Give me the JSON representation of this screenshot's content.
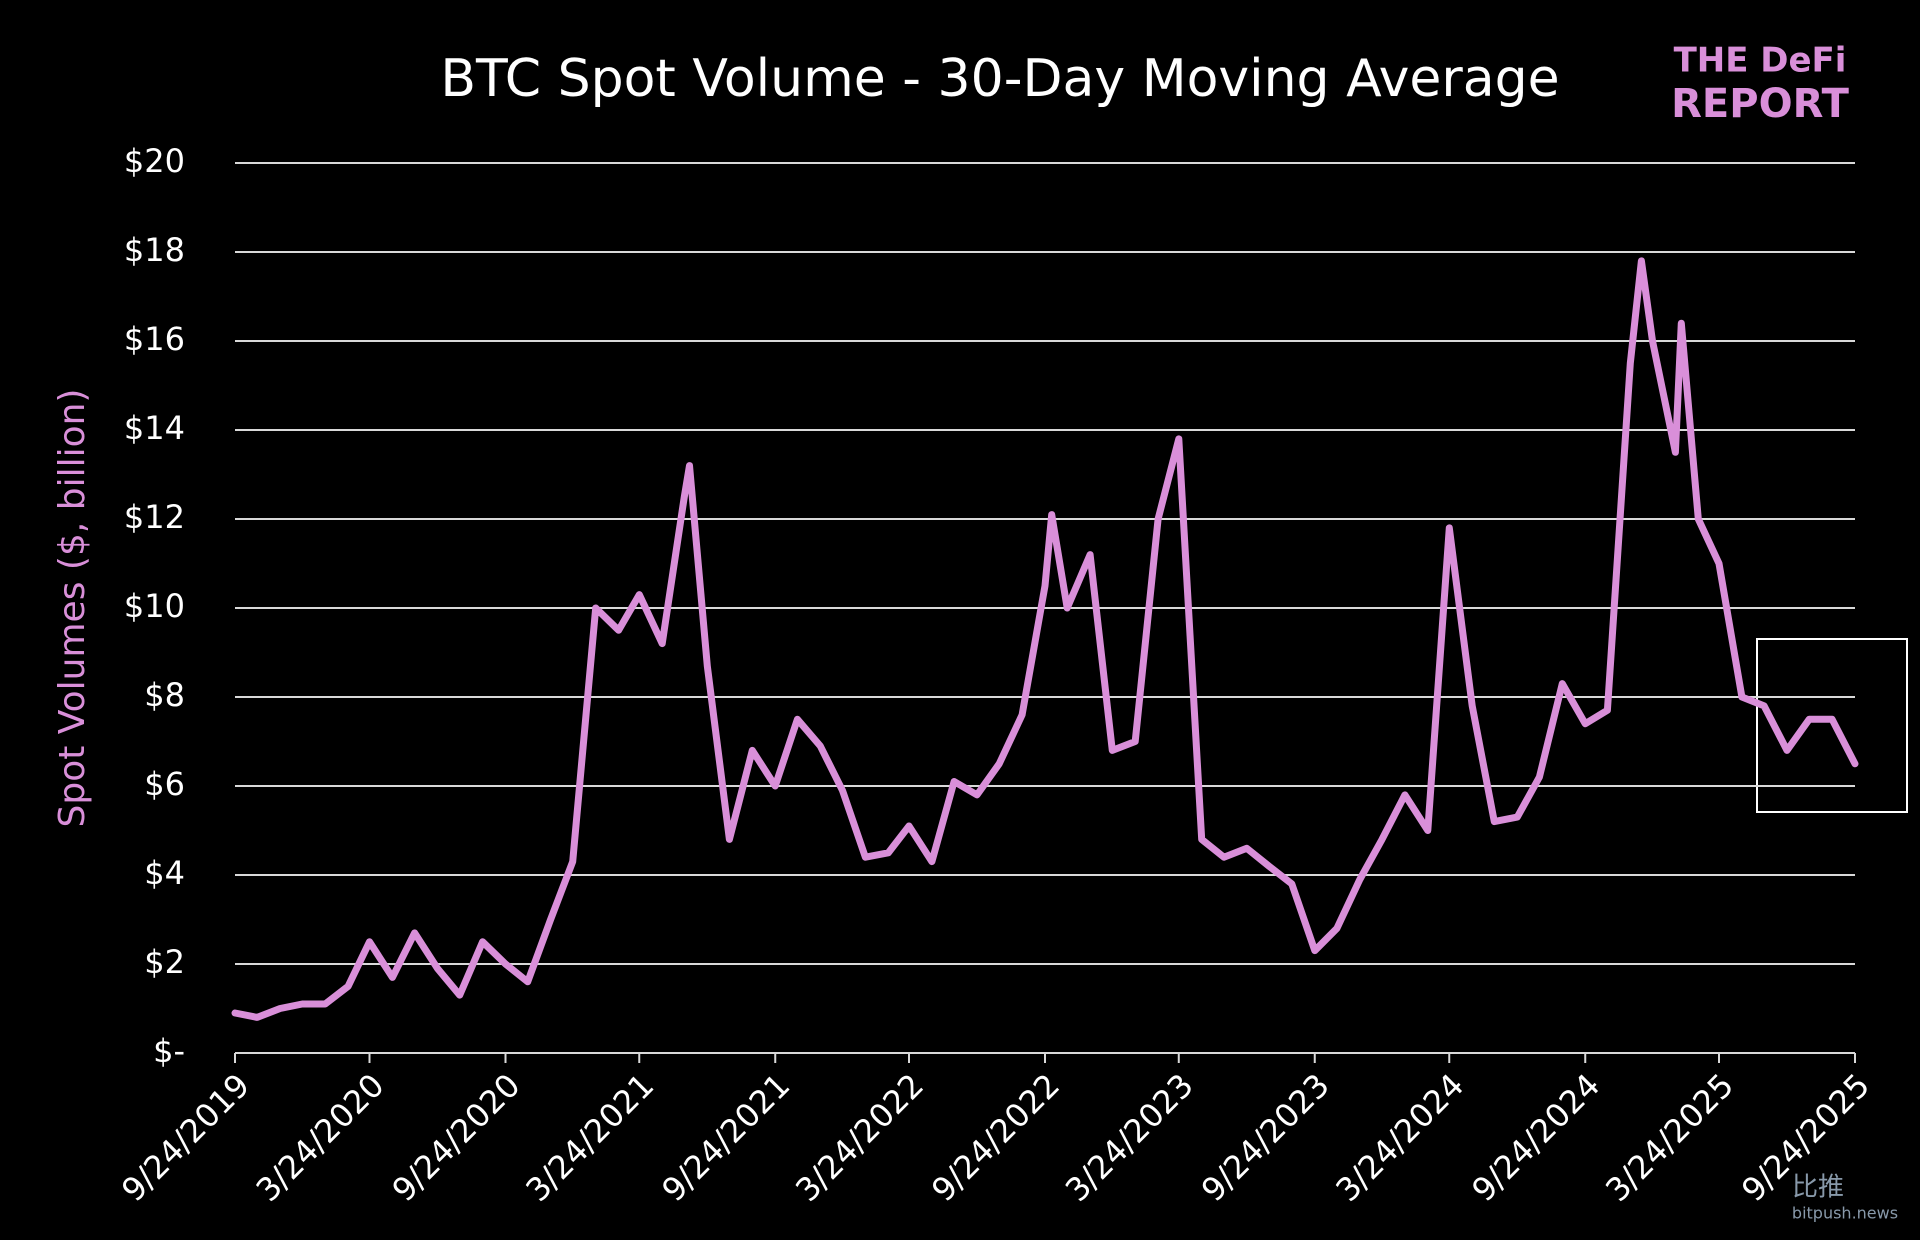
{
  "chart_data": {
    "type": "line",
    "title": "BTC Spot Volume - 30-Day Moving Average",
    "y_label": "Spot Volumes ($, billion)",
    "logo": [
      "THE DeFi",
      "REPORT"
    ],
    "watermark": [
      "比推",
      "bitpush.news"
    ],
    "grid": true,
    "xlim": [
      "9/24/2019",
      "9/24/2025"
    ],
    "xticks": [
      "9/24/2019",
      "3/24/2020",
      "9/24/2020",
      "3/24/2021",
      "9/24/2021",
      "3/24/2022",
      "9/24/2022",
      "3/24/2023",
      "9/24/2023",
      "3/24/2024",
      "9/24/2024",
      "3/24/2025",
      "9/24/2025"
    ],
    "ylim": [
      0,
      20
    ],
    "yticks": [
      {
        "value": 0,
        "label": "$-"
      },
      {
        "value": 2,
        "label": "$2"
      },
      {
        "value": 4,
        "label": "$4"
      },
      {
        "value": 6,
        "label": "$6"
      },
      {
        "value": 8,
        "label": "$8"
      },
      {
        "value": 10,
        "label": "$10"
      },
      {
        "value": 12,
        "label": "$12"
      },
      {
        "value": 14,
        "label": "$14"
      },
      {
        "value": 16,
        "label": "$16"
      },
      {
        "value": 18,
        "label": "$18"
      },
      {
        "value": 20,
        "label": "$20"
      }
    ],
    "x": [
      "9/24/2019",
      "10/24/2019",
      "11/24/2019",
      "12/24/2019",
      "1/24/2020",
      "2/24/2020",
      "3/24/2020",
      "4/24/2020",
      "5/24/2020",
      "6/24/2020",
      "7/24/2020",
      "8/24/2020",
      "9/24/2020",
      "10/24/2020",
      "11/24/2020",
      "12/24/2020",
      "1/24/2021",
      "2/24/2021",
      "3/24/2021",
      "4/24/2021",
      "5/24/2021",
      "5/31/2021",
      "6/24/2021",
      "7/24/2021",
      "8/24/2021",
      "9/24/2021",
      "10/24/2021",
      "11/24/2021",
      "12/24/2021",
      "1/24/2022",
      "2/24/2022",
      "3/24/2022",
      "4/24/2022",
      "5/24/2022",
      "6/24/2022",
      "7/24/2022",
      "8/24/2022",
      "9/24/2022",
      "10/3/2022",
      "10/24/2022",
      "11/24/2022",
      "12/24/2022",
      "1/24/2023",
      "2/24/2023",
      "3/24/2023",
      "4/24/2023",
      "5/24/2023",
      "6/24/2023",
      "7/24/2023",
      "8/24/2023",
      "9/24/2023",
      "10/24/2023",
      "11/24/2023",
      "12/24/2023",
      "1/24/2024",
      "2/24/2024",
      "3/24/2024",
      "4/24/2024",
      "5/24/2024",
      "6/24/2024",
      "7/24/2024",
      "8/24/2024",
      "9/24/2024",
      "10/24/2024",
      "11/24/2024",
      "12/9/2024",
      "12/24/2024",
      "1/24/2025",
      "2/1/2025",
      "2/24/2025",
      "3/24/2025",
      "4/24/2025",
      "5/24/2025",
      "6/24/2025",
      "7/24/2025",
      "8/24/2025",
      "9/24/2025"
    ],
    "series": [
      {
        "name": "BTC Spot Volume",
        "color": "#d98fd9",
        "values": [
          0.9,
          0.8,
          1.0,
          1.1,
          1.1,
          1.5,
          2.5,
          1.7,
          2.7,
          1.9,
          1.3,
          2.5,
          2.0,
          1.6,
          3.0,
          4.3,
          10.0,
          9.5,
          10.3,
          9.2,
          12.5,
          13.2,
          8.7,
          4.8,
          6.8,
          6.0,
          7.5,
          6.9,
          5.9,
          4.4,
          4.5,
          5.1,
          4.3,
          6.1,
          5.8,
          6.5,
          7.6,
          10.5,
          12.1,
          10.0,
          11.2,
          6.8,
          7.0,
          12.0,
          13.8,
          4.8,
          4.4,
          4.6,
          4.2,
          3.8,
          2.3,
          2.8,
          3.9,
          4.8,
          5.8,
          5.0,
          11.8,
          7.8,
          5.2,
          5.3,
          6.2,
          8.3,
          7.4,
          7.7,
          15.5,
          17.8,
          16.0,
          13.5,
          16.4,
          12.0,
          11.0,
          8.0,
          7.8,
          6.8,
          7.5,
          7.5,
          6.5
        ]
      }
    ]
  }
}
